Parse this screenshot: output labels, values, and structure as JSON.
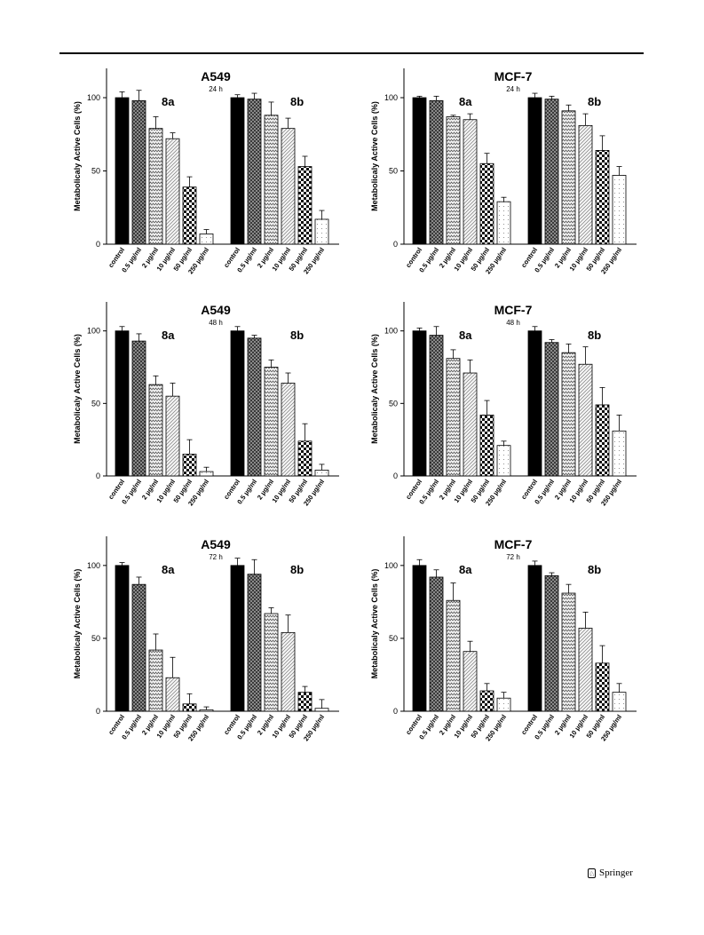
{
  "chart_data": [
    {
      "type": "bar",
      "title": "A549",
      "subtitle": "24 h",
      "ylabel": "Metabolicaly Active Cells (%)",
      "ylim": [
        0,
        120
      ],
      "yticks": [
        0,
        50,
        100
      ],
      "groups": [
        {
          "name": "8a",
          "categories": [
            "control",
            "0.5 µg/ml",
            "2 µg/ml",
            "10 µg/ml",
            "50 µg/ml",
            "250 µg/ml"
          ],
          "values": [
            100,
            98,
            79,
            72,
            39,
            7
          ],
          "errors": [
            4,
            7,
            8,
            4,
            7,
            3
          ]
        },
        {
          "name": "8b",
          "categories": [
            "control",
            "0.5 µg/ml",
            "2 µg/ml",
            "10 µg/ml",
            "50 µg/ml",
            "250 µg/ml"
          ],
          "values": [
            100,
            99,
            88,
            79,
            53,
            17
          ],
          "errors": [
            2,
            4,
            9,
            7,
            7,
            6
          ]
        }
      ]
    },
    {
      "type": "bar",
      "title": "MCF-7",
      "subtitle": "24 h",
      "ylabel": "Metabolicaly Active Cells (%)",
      "ylim": [
        0,
        120
      ],
      "yticks": [
        0,
        50,
        100
      ],
      "groups": [
        {
          "name": "8a",
          "categories": [
            "control",
            "0.5 µg/ml",
            "2 µg/ml",
            "10 µg/ml",
            "50 µg/ml",
            "250 µg/ml"
          ],
          "values": [
            100,
            98,
            87,
            85,
            55,
            29
          ],
          "errors": [
            1,
            3,
            1,
            4,
            7,
            3
          ]
        },
        {
          "name": "8b",
          "categories": [
            "control",
            "0.5 µg/ml",
            "2 µg/ml",
            "10 µg/ml",
            "50 µg/ml",
            "250 µg/ml"
          ],
          "values": [
            100,
            99,
            91,
            81,
            64,
            47
          ],
          "errors": [
            3,
            2,
            4,
            8,
            10,
            6
          ]
        }
      ]
    },
    {
      "type": "bar",
      "title": "A549",
      "subtitle": "48 h",
      "ylabel": "Metabolicaly Active Cells (%)",
      "ylim": [
        0,
        120
      ],
      "yticks": [
        0,
        50,
        100
      ],
      "groups": [
        {
          "name": "8a",
          "categories": [
            "control",
            "0.5 µg/ml",
            "2 µg/ml",
            "10 µg/ml",
            "50 µg/ml",
            "250 µg/ml"
          ],
          "values": [
            100,
            93,
            63,
            55,
            15,
            3
          ],
          "errors": [
            3,
            5,
            6,
            9,
            10,
            3
          ]
        },
        {
          "name": "8b",
          "categories": [
            "control",
            "0.5 µg/ml",
            "2 µg/ml",
            "10 µg/ml",
            "50 µg/ml",
            "250 µg/ml"
          ],
          "values": [
            100,
            95,
            75,
            64,
            24,
            4
          ],
          "errors": [
            3,
            2,
            5,
            7,
            12,
            4
          ]
        }
      ]
    },
    {
      "type": "bar",
      "title": "MCF-7",
      "subtitle": "48 h",
      "ylabel": "Metabolicaly Active Cells (%)",
      "ylim": [
        0,
        120
      ],
      "yticks": [
        0,
        50,
        100
      ],
      "groups": [
        {
          "name": "8a",
          "categories": [
            "control",
            "0.5 µg/ml",
            "2 µg/ml",
            "10 µg/ml",
            "50 µg/ml",
            "250 µg/ml"
          ],
          "values": [
            100,
            97,
            81,
            71,
            42,
            21
          ],
          "errors": [
            2,
            6,
            6,
            9,
            10,
            3
          ]
        },
        {
          "name": "8b",
          "categories": [
            "control",
            "0.5 µg/ml",
            "2 µg/ml",
            "10 µg/ml",
            "50 µg/ml",
            "250 µg/ml"
          ],
          "values": [
            100,
            92,
            85,
            77,
            49,
            31
          ],
          "errors": [
            3,
            2,
            6,
            12,
            12,
            11
          ]
        }
      ]
    },
    {
      "type": "bar",
      "title": "A549",
      "subtitle": "72 h",
      "ylabel": "Metabolicaly Active Cells (%)",
      "ylim": [
        0,
        120
      ],
      "yticks": [
        0,
        50,
        100
      ],
      "groups": [
        {
          "name": "8a",
          "categories": [
            "control",
            "0.5 µg/ml",
            "2 µg/ml",
            "10 µg/ml",
            "50 µg/ml",
            "250 µg/ml"
          ],
          "values": [
            100,
            87,
            42,
            23,
            5,
            1
          ],
          "errors": [
            2,
            5,
            11,
            14,
            7,
            2
          ]
        },
        {
          "name": "8b",
          "categories": [
            "control",
            "0.5 µg/ml",
            "2 µg/ml",
            "10 µg/ml",
            "50 µg/ml",
            "250 µg/ml"
          ],
          "values": [
            100,
            94,
            67,
            54,
            13,
            2
          ],
          "errors": [
            5,
            10,
            4,
            12,
            4,
            6
          ]
        }
      ]
    },
    {
      "type": "bar",
      "title": "MCF-7",
      "subtitle": "72 h",
      "ylabel": "Metabolicaly Active Cells (%)",
      "ylim": [
        0,
        120
      ],
      "yticks": [
        0,
        50,
        100
      ],
      "groups": [
        {
          "name": "8a",
          "categories": [
            "control",
            "0.5 µg/ml",
            "2 µg/ml",
            "10 µg/ml",
            "50 µg/ml",
            "250 µg/ml"
          ],
          "values": [
            100,
            92,
            76,
            41,
            14,
            9
          ],
          "errors": [
            4,
            5,
            12,
            7,
            5,
            4
          ]
        },
        {
          "name": "8b",
          "categories": [
            "control",
            "0.5 µg/ml",
            "2 µg/ml",
            "10 µg/ml",
            "50 µg/ml",
            "250 µg/ml"
          ],
          "values": [
            100,
            93,
            81,
            57,
            33,
            13
          ],
          "errors": [
            3,
            2,
            6,
            11,
            12,
            6
          ]
        }
      ]
    }
  ],
  "footer": {
    "publisher": "Springer"
  }
}
